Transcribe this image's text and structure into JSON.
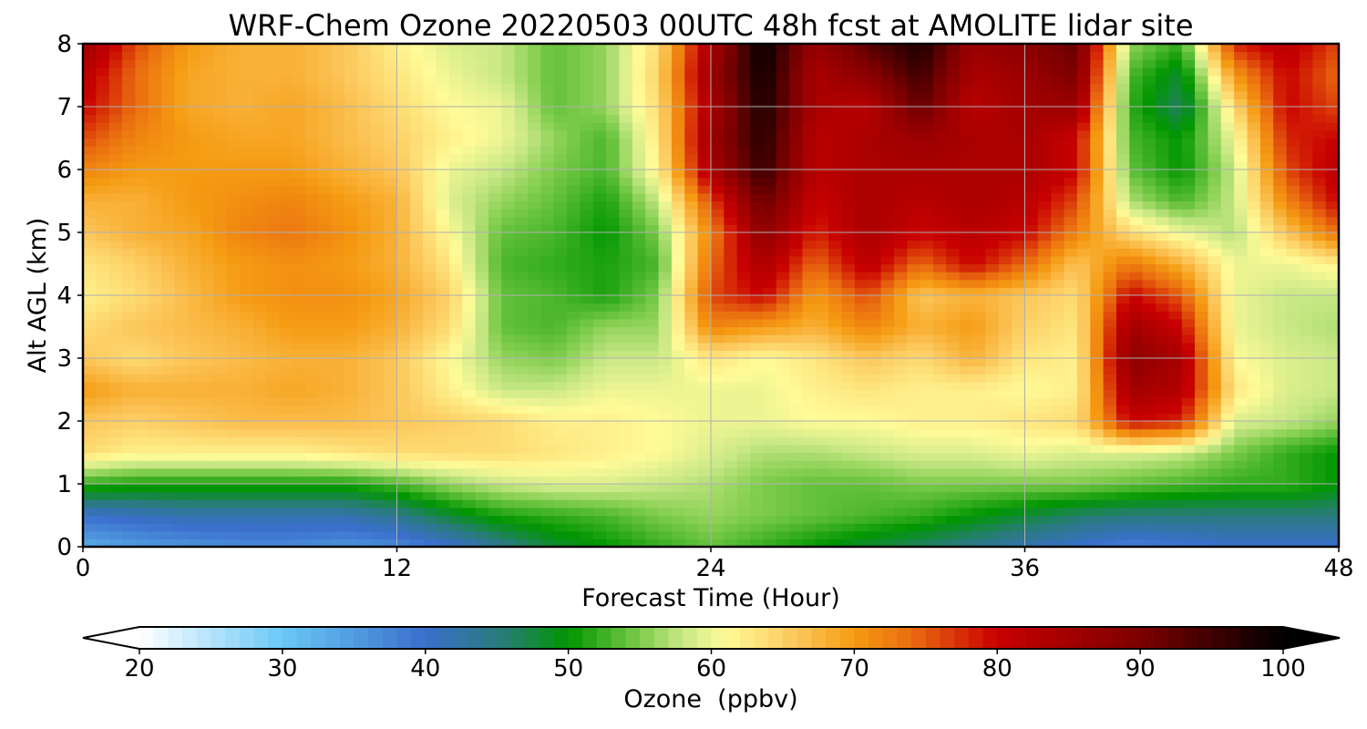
{
  "chart_data": {
    "type": "heatmap",
    "title": "WRF-Chem Ozone  20220503 00UTC 48h fcst at AMOLITE lidar site",
    "xlabel": "Forecast Time (Hour)",
    "ylabel": "Alt AGL (km)",
    "xlim": [
      0,
      48
    ],
    "ylim": [
      0,
      8
    ],
    "x_ticks": [
      0,
      12,
      24,
      36,
      48
    ],
    "y_ticks": [
      0,
      1,
      2,
      3,
      4,
      5,
      6,
      7,
      8
    ],
    "grid": true,
    "colorbar": {
      "label": "Ozone  (ppbv)",
      "range": [
        20,
        100
      ],
      "ticks": [
        20,
        30,
        40,
        50,
        60,
        70,
        80,
        90,
        100
      ],
      "extend": "both",
      "stops": [
        {
          "value": 20,
          "color": "#ffffff"
        },
        {
          "value": 30,
          "color": "#69c8f5"
        },
        {
          "value": 40,
          "color": "#3a6fcc"
        },
        {
          "value": 45,
          "color": "#2a7a80"
        },
        {
          "value": 50,
          "color": "#019601"
        },
        {
          "value": 55,
          "color": "#7ccb4a"
        },
        {
          "value": 58,
          "color": "#c9e886"
        },
        {
          "value": 61,
          "color": "#fffb98"
        },
        {
          "value": 66,
          "color": "#fcc65a"
        },
        {
          "value": 70,
          "color": "#f59b12"
        },
        {
          "value": 74,
          "color": "#ea6c10"
        },
        {
          "value": 80,
          "color": "#c80000"
        },
        {
          "value": 90,
          "color": "#7d0000"
        },
        {
          "value": 100,
          "color": "#000000"
        }
      ]
    },
    "z_grid": {
      "x": [
        0,
        2,
        4,
        6,
        8,
        10,
        12,
        14,
        16,
        18,
        20,
        22,
        24,
        26,
        28,
        30,
        32,
        34,
        36,
        38,
        40,
        42,
        44,
        46,
        48
      ],
      "y": [
        0,
        0.5,
        1,
        1.5,
        2,
        2.5,
        3,
        3.5,
        4,
        4.5,
        5,
        5.5,
        6,
        6.5,
        7,
        7.5,
        8
      ],
      "values": [
        [
          33,
          35,
          36,
          37,
          37,
          36,
          37,
          40,
          44,
          48,
          50,
          52,
          54,
          52,
          50,
          48,
          46,
          44,
          42,
          40,
          38,
          39,
          40,
          40,
          40
        ],
        [
          40,
          41,
          42,
          42,
          42,
          42,
          44,
          48,
          51,
          52,
          53,
          55,
          56,
          55,
          54,
          53,
          52,
          50,
          48,
          46,
          45,
          45,
          45,
          45,
          45
        ],
        [
          52,
          51,
          51,
          51,
          51,
          51,
          53,
          56,
          58,
          59,
          59,
          58,
          57,
          55,
          54,
          54,
          55,
          55,
          55,
          55,
          54,
          53,
          52,
          52,
          50
        ],
        [
          64,
          62,
          62,
          62,
          62,
          63,
          64,
          64,
          64,
          63,
          62,
          61,
          59,
          57,
          57,
          58,
          59,
          59,
          60,
          59,
          59,
          58,
          55,
          52,
          50
        ],
        [
          66,
          65,
          66,
          67,
          67,
          67,
          66,
          65,
          64,
          62,
          62,
          61,
          60,
          60,
          61,
          61,
          62,
          62,
          63,
          64,
          80,
          78,
          59,
          58,
          56
        ],
        [
          70,
          68,
          68,
          68,
          69,
          68,
          66,
          62,
          58,
          58,
          60,
          60,
          60,
          60,
          62,
          63,
          62,
          62,
          61,
          62,
          85,
          83,
          63,
          59,
          58
        ],
        [
          66,
          64,
          66,
          67,
          68,
          68,
          66,
          61,
          56,
          55,
          58,
          58,
          63,
          61,
          63,
          66,
          64,
          68,
          63,
          62,
          88,
          84,
          61,
          59,
          58
        ],
        [
          64,
          66,
          67,
          68,
          70,
          70,
          68,
          64,
          54,
          53,
          56,
          56,
          72,
          70,
          68,
          72,
          68,
          70,
          65,
          63,
          85,
          80,
          60,
          58,
          57
        ],
        [
          62,
          64,
          67,
          70,
          71,
          71,
          69,
          65,
          54,
          53,
          51,
          55,
          76,
          80,
          70,
          76,
          66,
          68,
          66,
          64,
          80,
          75,
          60,
          58,
          58
        ],
        [
          63,
          65,
          68,
          70,
          71,
          70,
          68,
          63,
          53,
          52,
          51,
          53,
          74,
          84,
          74,
          82,
          74,
          80,
          74,
          66,
          73,
          68,
          60,
          60,
          62
        ],
        [
          66,
          68,
          69,
          72,
          73,
          71,
          68,
          61,
          54,
          53,
          50,
          55,
          72,
          88,
          78,
          84,
          80,
          82,
          80,
          72,
          64,
          60,
          57,
          66,
          74
        ],
        [
          68,
          68,
          70,
          71,
          72,
          70,
          68,
          59,
          56,
          54,
          51,
          58,
          76,
          92,
          80,
          84,
          82,
          84,
          82,
          76,
          57,
          53,
          58,
          72,
          80
        ],
        [
          72,
          70,
          70,
          70,
          70,
          68,
          66,
          60,
          58,
          55,
          53,
          62,
          84,
          96,
          82,
          84,
          84,
          84,
          84,
          80,
          54,
          50,
          58,
          76,
          82
        ],
        [
          76,
          72,
          70,
          69,
          69,
          67,
          65,
          62,
          60,
          56,
          53,
          63,
          86,
          97,
          82,
          84,
          86,
          84,
          84,
          80,
          53,
          50,
          60,
          78,
          80
        ],
        [
          80,
          74,
          69,
          68,
          69,
          67,
          64,
          61,
          60,
          54,
          56,
          64,
          84,
          98,
          84,
          82,
          92,
          82,
          85,
          86,
          52,
          46,
          64,
          80,
          76
        ],
        [
          82,
          74,
          69,
          68,
          68,
          66,
          63,
          60,
          58,
          54,
          56,
          65,
          86,
          99,
          84,
          88,
          95,
          84,
          86,
          90,
          53,
          48,
          70,
          80,
          74
        ],
        [
          86,
          76,
          70,
          68,
          68,
          66,
          62,
          59,
          58,
          54,
          56,
          64,
          84,
          100,
          86,
          93,
          98,
          86,
          88,
          92,
          56,
          52,
          78,
          82,
          76
        ]
      ]
    }
  }
}
